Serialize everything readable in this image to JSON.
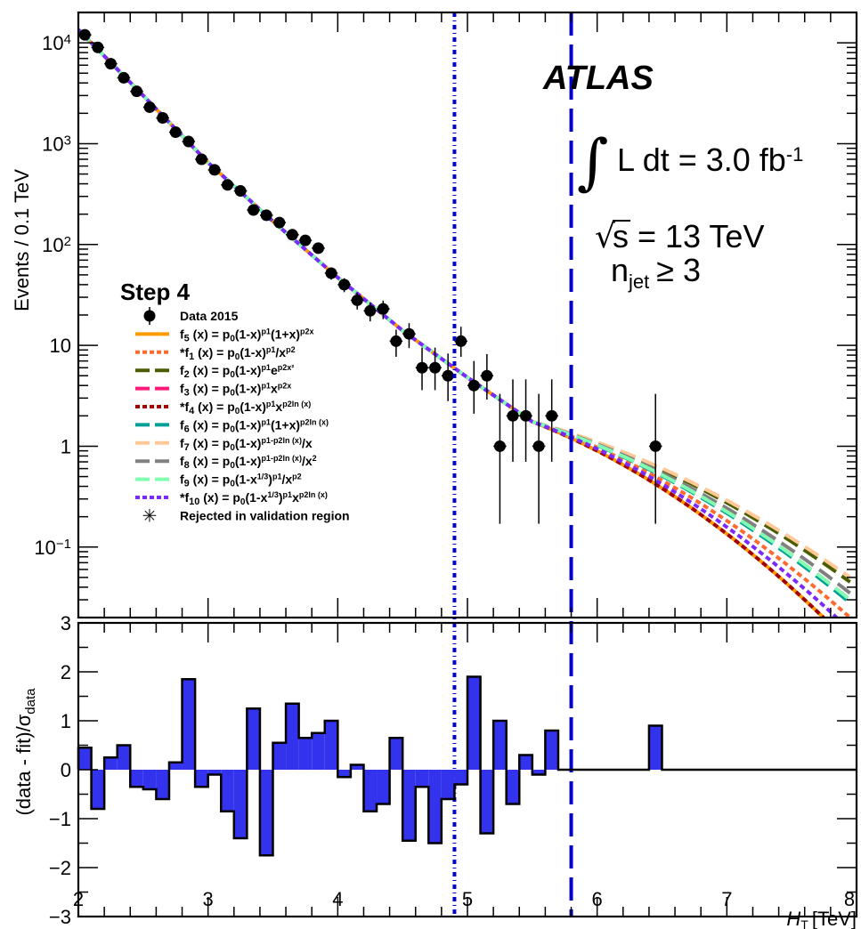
{
  "chart_data": [
    {
      "type": "scatter",
      "panel": "main",
      "ylabel": "Events / 0.1 TeV",
      "yscale": "log",
      "ylim": [
        0.02,
        20000
      ],
      "xlim": [
        2,
        8
      ],
      "ytick_labels": [
        {
          "v": 10000,
          "base": "10",
          "exp": "4"
        },
        {
          "v": 1000,
          "base": "10",
          "exp": "3"
        },
        {
          "v": 100,
          "base": "10",
          "exp": "2"
        },
        {
          "v": 10,
          "base": "10",
          "exp": ""
        },
        {
          "v": 1,
          "base": "1",
          "exp": ""
        },
        {
          "v": 0.1,
          "base": "10",
          "exp": "−1"
        }
      ],
      "data_points": {
        "x": [
          2.05,
          2.15,
          2.25,
          2.35,
          2.45,
          2.55,
          2.65,
          2.75,
          2.85,
          2.95,
          3.05,
          3.15,
          3.25,
          3.35,
          3.45,
          3.55,
          3.65,
          3.75,
          3.85,
          3.95,
          4.05,
          4.15,
          4.25,
          4.35,
          4.45,
          4.55,
          4.65,
          4.75,
          4.85,
          4.95,
          5.05,
          5.15,
          5.25,
          5.35,
          5.45,
          5.55,
          5.65,
          6.45
        ],
        "y": [
          12000,
          9000,
          6200,
          4500,
          3300,
          2300,
          1800,
          1300,
          1050,
          700,
          550,
          390,
          340,
          220,
          195,
          165,
          125,
          110,
          92,
          52,
          40,
          28,
          22,
          23,
          11,
          13,
          6,
          6,
          5,
          11,
          4,
          5,
          1,
          2,
          2,
          1,
          2,
          1
        ],
        "yerr_lo": [
          110,
          95,
          79,
          67,
          57,
          48,
          42,
          36,
          32,
          26,
          23,
          20,
          18,
          15,
          14,
          13,
          11,
          10,
          9.6,
          7.2,
          6.3,
          5.3,
          4.7,
          4.8,
          3.3,
          3.6,
          2.4,
          2.4,
          2.2,
          3.3,
          1.9,
          2.1,
          0.83,
          1.3,
          1.3,
          0.83,
          1.3,
          0.83
        ],
        "yerr_hi": [
          110,
          95,
          79,
          67,
          57,
          48,
          42,
          36,
          32,
          26,
          23,
          20,
          18,
          15,
          14,
          13,
          11,
          10,
          9.6,
          7.2,
          6.3,
          5.3,
          4.7,
          4.8,
          3.3,
          3.6,
          3.5,
          3.5,
          3.3,
          4.3,
          3,
          3.2,
          2.3,
          2.6,
          2.6,
          2.3,
          2.6,
          2.3
        ]
      },
      "fit_curves": [
        {
          "label_html": "f<tspan baseline-shift='-25%' font-size='11'>5</tspan> (x) = p<tspan baseline-shift='-25%' font-size='10'>0</tspan>(1-x)<tspan baseline-shift='60%' font-size='9'>p1</tspan>(1+x)<tspan baseline-shift='60%' font-size='9'>p2x</tspan>",
          "color": "#ff9a00",
          "dash": "",
          "y_at_4": 45,
          "y_at_5": 5.2,
          "slope": [
            -0.99,
            -1.05,
            -1.21,
            -1.45,
            -1.8
          ],
          "slope_x": [
            4.2,
            5.0,
            5.8,
            6.6,
            7.4
          ]
        },
        {
          "label_html": "*f<tspan baseline-shift='-25%' font-size='11'>1</tspan> (x) = p<tspan baseline-shift='-25%' font-size='10'>0</tspan>(1-x)<tspan baseline-shift='60%' font-size='9'>p1</tspan>/x<tspan baseline-shift='60%' font-size='9'>p2</tspan>",
          "color": "#ff6a30",
          "dash": "6,4",
          "y_at_4": 45,
          "y_at_5": 5.2
        },
        {
          "label_html": "f<tspan baseline-shift='-25%' font-size='11'>2</tspan> (x) = p<tspan baseline-shift='-25%' font-size='10'>0</tspan>(1-x)<tspan baseline-shift='60%' font-size='9'>p1</tspan>e<tspan baseline-shift='60%' font-size='9'>p2x²</tspan>",
          "color": "#4a5e00",
          "dash": "18,8",
          "y_at_4": 45,
          "y_at_5": 5.2
        },
        {
          "label_html": "f<tspan baseline-shift='-25%' font-size='11'>3</tspan> (x) = p<tspan baseline-shift='-25%' font-size='10'>0</tspan>(1-x)<tspan baseline-shift='60%' font-size='9'>p1</tspan>x<tspan baseline-shift='60%' font-size='9'>p2x</tspan>",
          "color": "#ff1a7a",
          "dash": "18,8",
          "y_at_4": 45,
          "y_at_5": 5.2
        },
        {
          "label_html": "*f<tspan baseline-shift='-25%' font-size='11'>4</tspan> (x) = p<tspan baseline-shift='-25%' font-size='10'>0</tspan>(1-x)<tspan baseline-shift='60%' font-size='9'>p1</tspan>x<tspan baseline-shift='60%' font-size='9'>p2ln (x)</tspan>",
          "color": "#a00000",
          "dash": "6,4",
          "y_at_4": 45,
          "y_at_5": 5.2
        },
        {
          "label_html": "f<tspan baseline-shift='-25%' font-size='11'>6</tspan> (x) = p<tspan baseline-shift='-25%' font-size='10'>0</tspan>(1-x)<tspan baseline-shift='60%' font-size='9'>p1</tspan>(1+x)<tspan baseline-shift='60%' font-size='9'>p2ln (x)</tspan>",
          "color": "#00a098",
          "dash": "18,8",
          "y_at_4": 45,
          "y_at_5": 5.2
        },
        {
          "label_html": "f<tspan baseline-shift='-25%' font-size='11'>7</tspan> (x) = p<tspan baseline-shift='-25%' font-size='10'>0</tspan>(1-x)<tspan baseline-shift='60%' font-size='9'>p1-p2ln (x)</tspan>/x",
          "color": "#ffc896",
          "dash": "18,8",
          "y_at_4": 45,
          "y_at_5": 5.2
        },
        {
          "label_html": "f<tspan baseline-shift='-25%' font-size='11'>8</tspan> (x) = p<tspan baseline-shift='-25%' font-size='10'>0</tspan>(1-x)<tspan baseline-shift='60%' font-size='9'>p1-p2ln (x)</tspan>/x<tspan baseline-shift='60%' font-size='9'>2</tspan>",
          "color": "#808080",
          "dash": "18,8",
          "y_at_4": 45,
          "y_at_5": 5.2
        },
        {
          "label_html": "f<tspan baseline-shift='-25%' font-size='11'>9</tspan> (x) = p<tspan baseline-shift='-25%' font-size='10'>0</tspan>(1-x<tspan baseline-shift='60%' font-size='9'>1/3</tspan>)<tspan baseline-shift='60%' font-size='9'>p1</tspan>/x<tspan baseline-shift='60%' font-size='9'>p2</tspan>",
          "color": "#80ffb0",
          "dash": "18,8",
          "y_at_4": 45,
          "y_at_5": 5.2
        },
        {
          "label_html": "*f<tspan baseline-shift='-25%' font-size='11'>10</tspan> (x) = p<tspan baseline-shift='-25%' font-size='10'>0</tspan>(1-x<tspan baseline-shift='60%' font-size='9'>1/3</tspan>)<tspan baseline-shift='60%' font-size='9'>p1</tspan>x<tspan baseline-shift='60%' font-size='9'>p2ln (x)</tspan>",
          "color": "#7a2aff",
          "dash": "6,4",
          "y_at_4": 45,
          "y_at_5": 5.2
        }
      ],
      "curve_endpoints_at_x7_95": [
        0.011,
        0.02,
        0.045,
        0.03,
        0.011,
        0.028,
        0.05,
        0.035,
        0.03,
        0.015
      ],
      "vertical_lines": [
        {
          "x": 4.9,
          "style": "dash-dot",
          "color": "#0000cc"
        },
        {
          "x": 5.8,
          "style": "long-dash",
          "color": "#0000cc"
        }
      ],
      "legend": {
        "title": "Step 4",
        "data_label": "Data 2015",
        "rejected_label": "Rejected in validation region"
      },
      "annotations": {
        "experiment": "ATLAS",
        "lumi_prefix": "L dt = 3.0 fb",
        "lumi_exp": "-1",
        "energy": "s = 13 TeV",
        "njet_prefix": "n",
        "njet_sub": "jet",
        "njet_suffix": "≥ 3"
      }
    },
    {
      "type": "bar",
      "panel": "ratio",
      "ylabel_main": "(data - fit)/σ",
      "ylabel_sub": "data",
      "xlabel_var": "H",
      "xlabel_sub": "T",
      "xlabel_unit": "[TeV]",
      "ylim": [
        -3,
        3
      ],
      "xlim": [
        2,
        8
      ],
      "xticks": [
        "2",
        "3",
        "4",
        "5",
        "6",
        "7",
        "8"
      ],
      "yticks": [
        "−3",
        "−2",
        "−1",
        "0",
        "1",
        "2",
        "3"
      ],
      "bin_edges": [
        2.0,
        2.1,
        2.2,
        2.3,
        2.4,
        2.5,
        2.6,
        2.7,
        2.8,
        2.9,
        3.0,
        3.1,
        3.2,
        3.3,
        3.4,
        3.5,
        3.6,
        3.7,
        3.8,
        3.9,
        4.0,
        4.1,
        4.2,
        4.3,
        4.4,
        4.5,
        4.6,
        4.7,
        4.8,
        4.9,
        5.0,
        5.1,
        5.2,
        5.3,
        5.4,
        5.5,
        5.6,
        5.7
      ],
      "values": [
        0.45,
        -0.8,
        0.25,
        0.5,
        -0.35,
        -0.4,
        -0.6,
        0.15,
        1.85,
        -0.35,
        -0.1,
        -0.85,
        -1.4,
        1.25,
        -1.75,
        0.55,
        1.35,
        0.65,
        0.75,
        1.0,
        -0.15,
        0.1,
        -0.85,
        -0.7,
        0.65,
        -1.45,
        -0.35,
        -1.5,
        -0.6,
        -0.3,
        1.9,
        -1.3,
        1.0,
        -0.7,
        0.3,
        -0.1,
        0.8
      ],
      "extra_bins": [
        {
          "start": 6.4,
          "end": 6.5,
          "value": 0.9
        }
      ],
      "fill": "#3333ee"
    }
  ]
}
